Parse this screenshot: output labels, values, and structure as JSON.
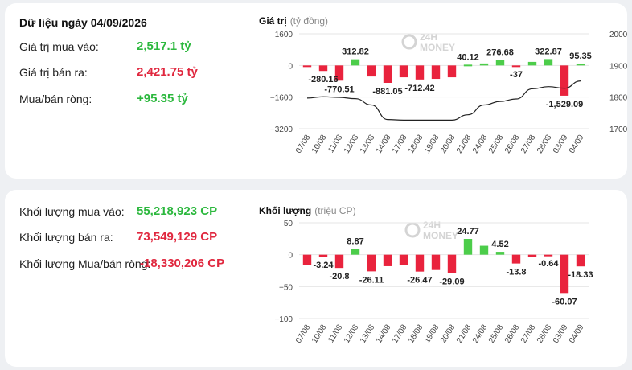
{
  "panel1": {
    "title": "Dữ liệu ngày 04/09/2026",
    "rows": [
      {
        "label": "Giá trị mua vào:",
        "value": "2,517.1 tỷ",
        "color": "#2cb83e"
      },
      {
        "label": "Giá trị bán ra:",
        "value": "2,421.75 tỷ",
        "color": "#e0283f"
      },
      {
        "label": "Mua/bán ròng:",
        "value": "+95.35 tỷ",
        "color": "#2cb83e"
      }
    ]
  },
  "panel2": {
    "rows": [
      {
        "label": "Khối lượng mua vào:",
        "value": "55,218,923 CP",
        "color": "#2cb83e"
      },
      {
        "label": "Khối lượng bán ra:",
        "value": "73,549,129 CP",
        "color": "#e0283f"
      },
      {
        "label": "Khối lượng Mua/bán ròng:",
        "value": "-18,330,206 CP",
        "color": "#e0283f"
      }
    ]
  },
  "watermark": {
    "line1": "24H",
    "line2": "MONEY"
  },
  "chart_data": [
    {
      "type": "bar",
      "title": "Giá trị",
      "unit": "(tỷ đồng)",
      "categories": [
        "07/08",
        "10/08",
        "11/08",
        "12/08",
        "13/08",
        "14/08",
        "17/08",
        "18/08",
        "19/08",
        "20/08",
        "21/08",
        "24/08",
        "25/08",
        "26/08",
        "27/08",
        "28/08",
        "03/09",
        "04/09"
      ],
      "values": [
        -50,
        -280.16,
        -770.51,
        312.82,
        -560,
        -881.05,
        -600,
        -712.42,
        -680,
        -600,
        40.12,
        100,
        276.68,
        -37,
        180,
        322.87,
        -1529.09,
        95.35
      ],
      "labels": [
        "",
        "-280.16",
        "-770.51",
        "312.82",
        "",
        "-881.05",
        "",
        "-712.42",
        "",
        "",
        "40.12",
        "",
        "276.68",
        "-37",
        "",
        "322.87",
        "-1,529.09",
        "95.35"
      ],
      "yticks": [
        1600,
        0,
        -1600,
        -3200
      ],
      "ytick_labels": [
        "1600",
        "0",
        "−1600",
        "−3200"
      ],
      "ylim": [
        -3200,
        1600
      ],
      "y2ticks": [
        2000,
        1900,
        1800,
        1700
      ],
      "y2lim": [
        1700,
        2000
      ],
      "line_values": [
        1797,
        1801,
        1799,
        1795,
        1775,
        1729,
        1727,
        1727,
        1727,
        1727,
        1744,
        1775,
        1786,
        1794,
        1826,
        1833,
        1828,
        1851
      ],
      "colors": {
        "positive": "#4ccd4a",
        "negative": "#e9233d",
        "line": "#222222"
      }
    },
    {
      "type": "bar",
      "title": "Khối lượng",
      "unit": "(triệu CP)",
      "categories": [
        "07/08",
        "10/08",
        "11/08",
        "12/08",
        "13/08",
        "14/08",
        "17/08",
        "18/08",
        "19/08",
        "20/08",
        "21/08",
        "24/08",
        "25/08",
        "26/08",
        "27/08",
        "28/08",
        "03/09",
        "04/09"
      ],
      "values": [
        -16,
        -3.24,
        -20.8,
        8.87,
        -26.11,
        -18,
        -16,
        -26.47,
        -24,
        -29.09,
        24.77,
        14,
        4.52,
        -13.8,
        -4,
        -0.64,
        -60.07,
        -18.33
      ],
      "labels": [
        "",
        "-3.24",
        "-20.8",
        "8.87",
        "-26.11",
        "",
        "",
        "-26.47",
        "",
        "-29.09",
        "24.77",
        "",
        "4.52",
        "-13.8",
        "",
        "-0.64",
        "-60.07",
        "-18.33"
      ],
      "yticks": [
        50,
        0,
        -50,
        -100
      ],
      "ytick_labels": [
        "50",
        "0",
        "−50",
        "−100"
      ],
      "ylim": [
        -100,
        50
      ],
      "colors": {
        "positive": "#4ccd4a",
        "negative": "#e9233d"
      }
    }
  ]
}
